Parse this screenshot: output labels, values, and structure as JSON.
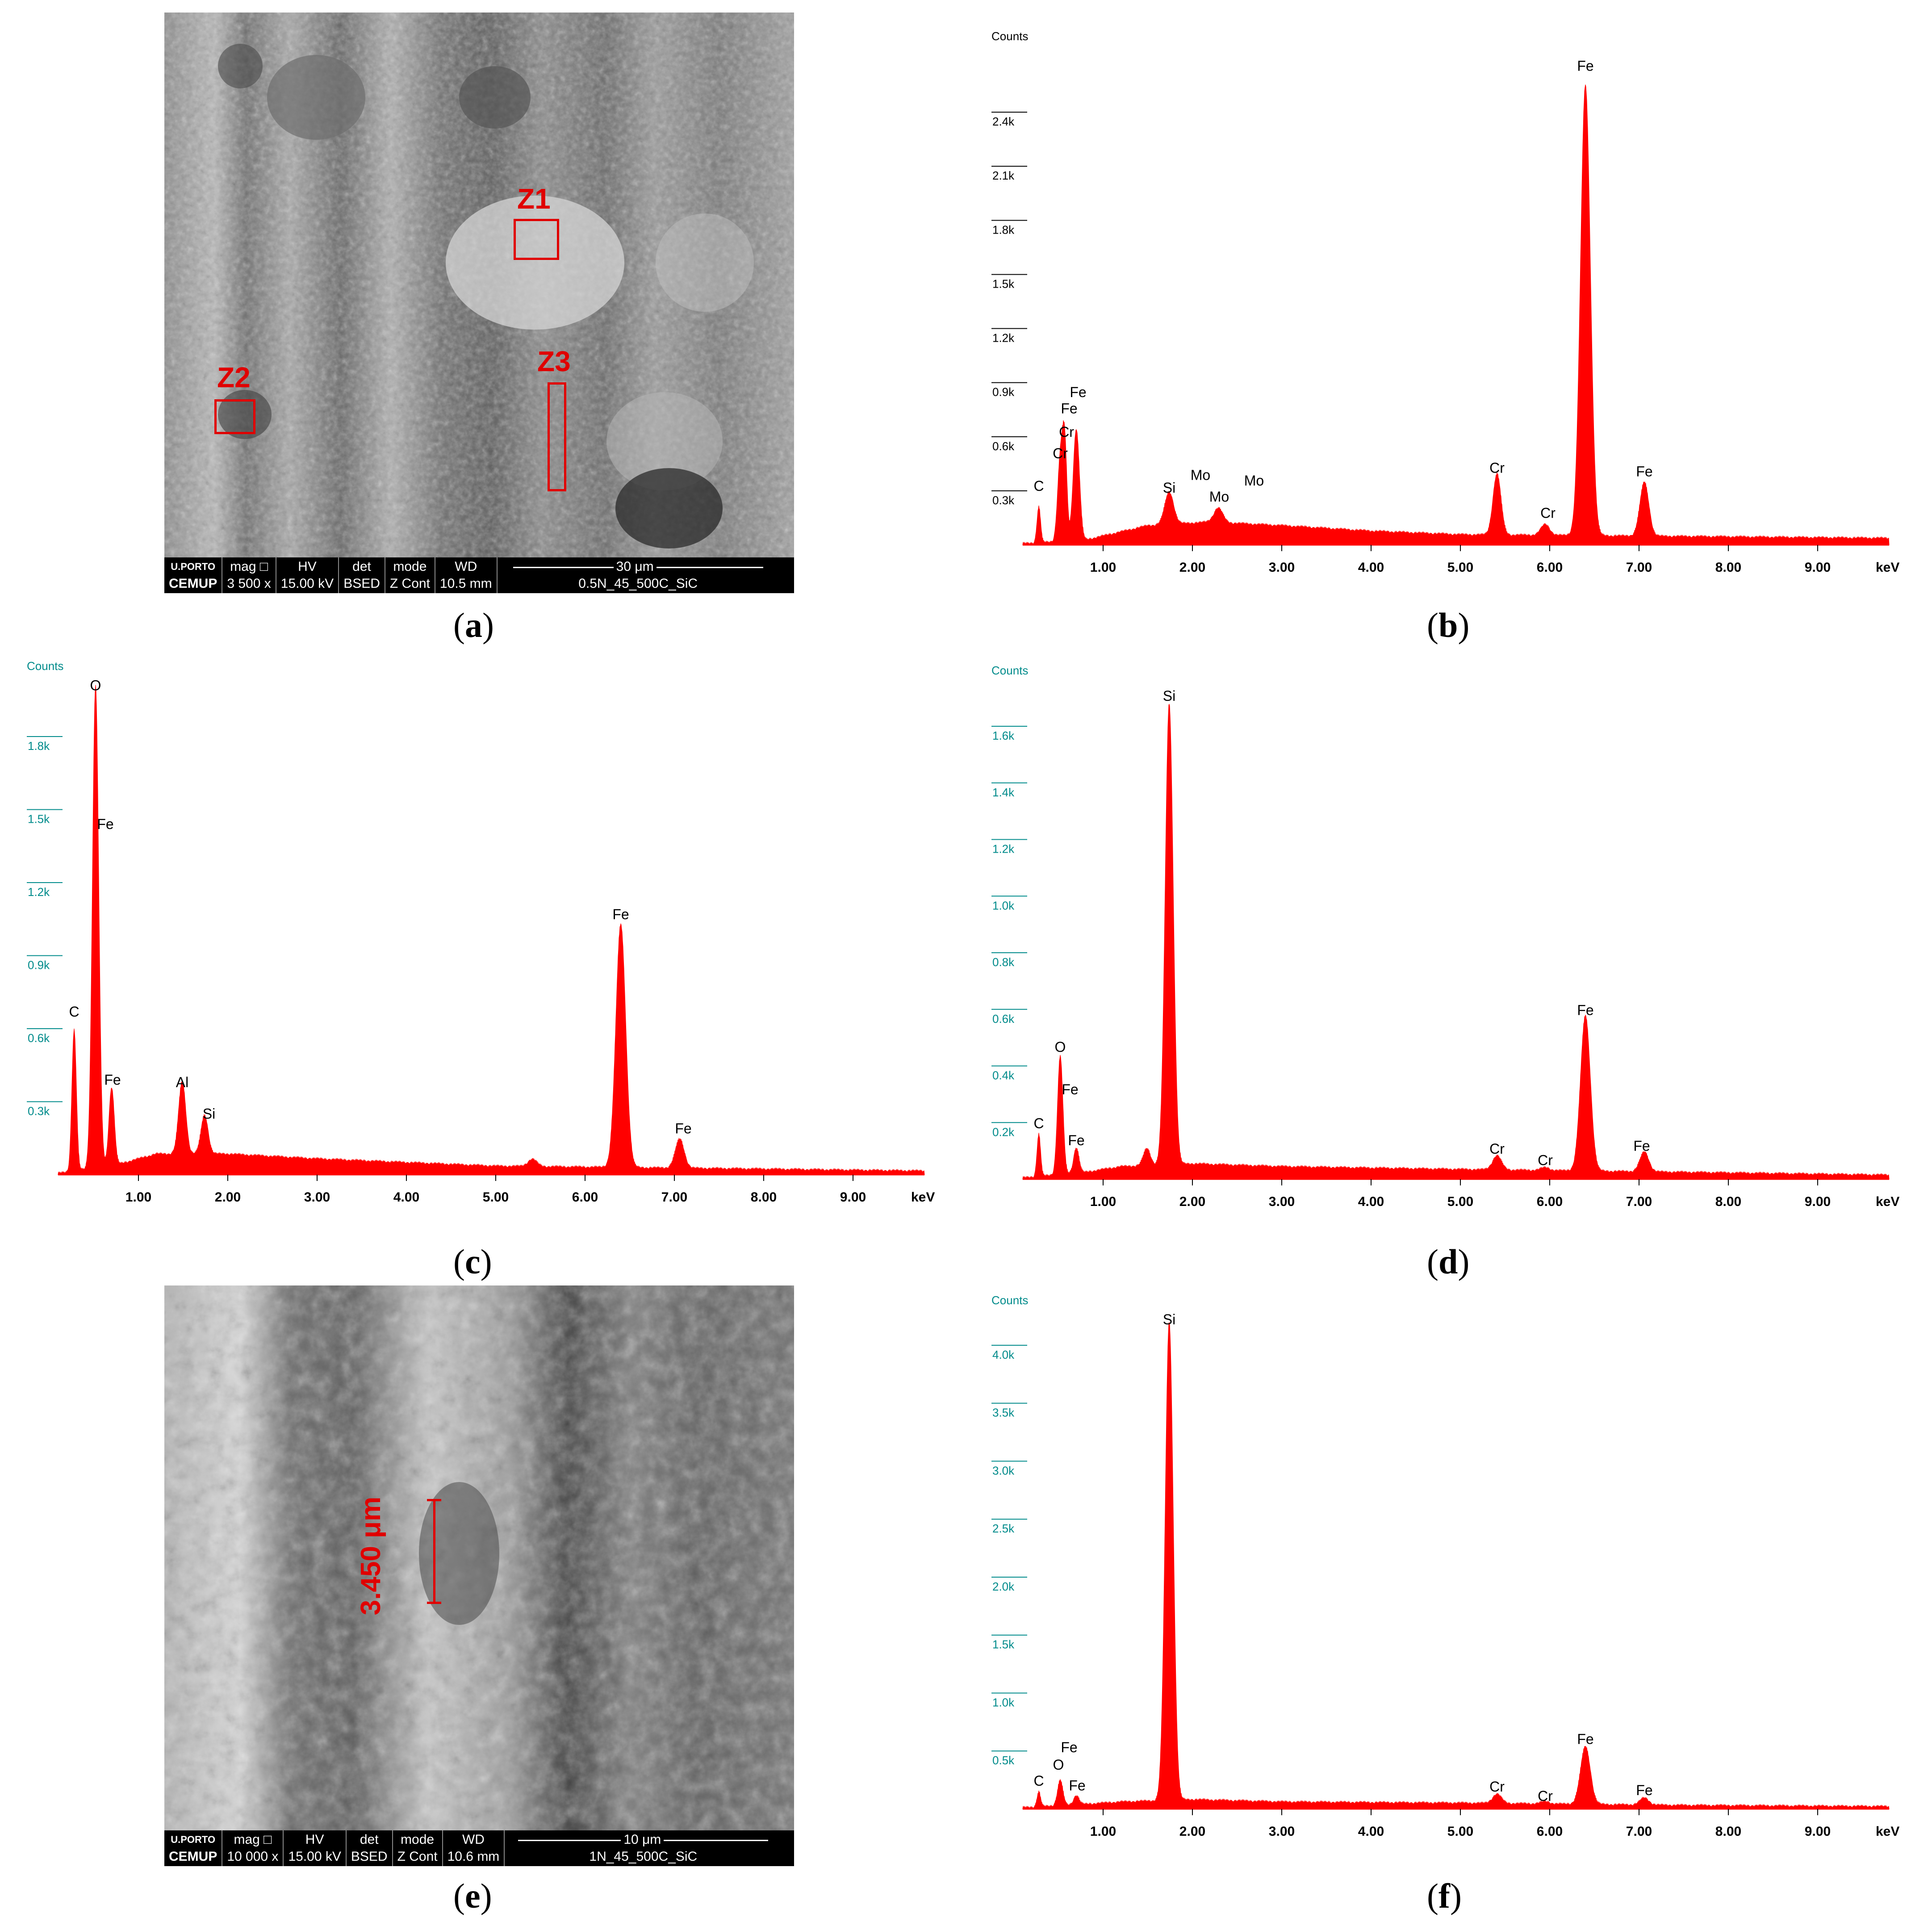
{
  "figure": {
    "captions": [
      "a",
      "b",
      "c",
      "d",
      "e",
      "f"
    ]
  },
  "sem_a": {
    "zones": [
      "Z1",
      "Z2",
      "Z3"
    ],
    "databar": {
      "logo_top": "U.PORTO",
      "logo_bottom": "CEMUP",
      "mag_label": "mag □",
      "mag_value": "3 500 x",
      "hv_label": "HV",
      "hv_value": "15.00 kV",
      "det_label": "det",
      "det_value": "BSED",
      "mode_label": "mode",
      "mode_value": "Z Cont",
      "wd_label": "WD",
      "wd_value": "10.5 mm",
      "scale": "30 μm",
      "sample": "0.5N_45_500C_SiC"
    }
  },
  "sem_e": {
    "measure": "3.450 μm",
    "databar": {
      "logo_top": "U.PORTO",
      "logo_bottom": "CEMUP",
      "mag_label": "mag □",
      "mag_value": "10 000 x",
      "hv_label": "HV",
      "hv_value": "15.00 kV",
      "det_label": "det",
      "det_value": "BSED",
      "mode_label": "mode",
      "mode_value": "Z Cont",
      "wd_label": "WD",
      "wd_value": "10.6 mm",
      "scale": "10 μm",
      "sample": "1N_45_500C_SiC"
    }
  },
  "colors": {
    "spectrum": "#ff0000",
    "zone": "#e00000",
    "tick_teal": "#008b8b"
  },
  "chart_data": [
    {
      "id": "b",
      "type": "area",
      "ylabel": "Counts",
      "xlabel": "keV",
      "xlim": [
        0.1,
        9.8
      ],
      "ylim": [
        0,
        2.7
      ],
      "xticks": [
        "1.00",
        "2.00",
        "3.00",
        "4.00",
        "5.00",
        "6.00",
        "7.00",
        "8.00",
        "9.00"
      ],
      "yticks": [
        "0.3k",
        "0.6k",
        "0.9k",
        "1.2k",
        "1.5k",
        "1.8k",
        "2.1k",
        "2.4k"
      ],
      "ytick_values": [
        0.3,
        0.6,
        0.9,
        1.2,
        1.5,
        1.8,
        2.1,
        2.4
      ],
      "ytick_color": "#000000",
      "peaks": [
        {
          "x": 0.28,
          "y": 0.2,
          "w": 0.02
        },
        {
          "x": 0.52,
          "y": 0.45,
          "w": 0.03
        },
        {
          "x": 0.57,
          "y": 0.52,
          "w": 0.025
        },
        {
          "x": 0.7,
          "y": 0.62,
          "w": 0.035
        },
        {
          "x": 1.74,
          "y": 0.18,
          "w": 0.05
        },
        {
          "x": 2.29,
          "y": 0.08,
          "w": 0.05
        },
        {
          "x": 5.41,
          "y": 0.34,
          "w": 0.045
        },
        {
          "x": 5.95,
          "y": 0.06,
          "w": 0.05
        },
        {
          "x": 6.4,
          "y": 2.5,
          "w": 0.055
        },
        {
          "x": 7.06,
          "y": 0.3,
          "w": 0.05
        }
      ],
      "background": [
        [
          0.8,
          0.02
        ],
        [
          1.5,
          0.1
        ],
        [
          2.2,
          0.12
        ],
        [
          3.0,
          0.1
        ],
        [
          4.0,
          0.07
        ],
        [
          5.0,
          0.05
        ],
        [
          7.5,
          0.04
        ],
        [
          9.8,
          0.03
        ]
      ],
      "labels": [
        {
          "text": "C",
          "x": 0.28,
          "y": 0.3
        },
        {
          "text": "Cr",
          "x": 0.52,
          "y": 0.48
        },
        {
          "text": "Cr",
          "x": 0.59,
          "y": 0.6
        },
        {
          "text": "Fe",
          "x": 0.62,
          "y": 0.73
        },
        {
          "text": "Fe",
          "x": 0.72,
          "y": 0.82
        },
        {
          "text": "Si",
          "x": 1.74,
          "y": 0.29
        },
        {
          "text": "Mo",
          "x": 2.09,
          "y": 0.36
        },
        {
          "text": "Mo",
          "x": 2.3,
          "y": 0.24
        },
        {
          "text": "Mo",
          "x": 2.69,
          "y": 0.33
        },
        {
          "text": "Cr",
          "x": 5.41,
          "y": 0.4
        },
        {
          "text": "Cr",
          "x": 5.98,
          "y": 0.15
        },
        {
          "text": "Fe",
          "x": 6.4,
          "y": 2.63
        },
        {
          "text": "Fe",
          "x": 7.06,
          "y": 0.38
        }
      ]
    },
    {
      "id": "c",
      "type": "area",
      "ylabel": "Counts",
      "xlabel": "keV",
      "xlim": [
        0.1,
        9.8
      ],
      "ylim": [
        0,
        2.0
      ],
      "xticks": [
        "1.00",
        "2.00",
        "3.00",
        "4.00",
        "5.00",
        "6.00",
        "7.00",
        "8.00",
        "9.00"
      ],
      "yticks": [
        "0.3k",
        "0.6k",
        "0.9k",
        "1.2k",
        "1.5k",
        "1.8k"
      ],
      "ytick_values": [
        0.3,
        0.6,
        0.9,
        1.2,
        1.5,
        1.8
      ],
      "ytick_color": "#008b8b",
      "peaks": [
        {
          "x": 0.28,
          "y": 0.58,
          "w": 0.025
        },
        {
          "x": 0.52,
          "y": 1.98,
          "w": 0.035
        },
        {
          "x": 0.7,
          "y": 0.32,
          "w": 0.03
        },
        {
          "x": 1.49,
          "y": 0.3,
          "w": 0.04
        },
        {
          "x": 1.74,
          "y": 0.16,
          "w": 0.04
        },
        {
          "x": 5.41,
          "y": 0.03,
          "w": 0.05
        },
        {
          "x": 6.4,
          "y": 1.0,
          "w": 0.055
        },
        {
          "x": 7.06,
          "y": 0.12,
          "w": 0.05
        }
      ],
      "background": [
        [
          0.8,
          0.04
        ],
        [
          1.2,
          0.08
        ],
        [
          2.0,
          0.08
        ],
        [
          3.0,
          0.06
        ],
        [
          5.0,
          0.03
        ],
        [
          7.5,
          0.02
        ],
        [
          9.8,
          0.01
        ]
      ],
      "labels": [
        {
          "text": "O",
          "x": 0.52,
          "y": 1.99
        },
        {
          "text": "C",
          "x": 0.28,
          "y": 0.65
        },
        {
          "text": "Fe",
          "x": 0.63,
          "y": 1.42
        },
        {
          "text": "Fe",
          "x": 0.71,
          "y": 0.37
        },
        {
          "text": "Al",
          "x": 1.49,
          "y": 0.36
        },
        {
          "text": "Si",
          "x": 1.79,
          "y": 0.23
        },
        {
          "text": "Fe",
          "x": 6.4,
          "y": 1.05
        },
        {
          "text": "Fe",
          "x": 7.1,
          "y": 0.17
        }
      ]
    },
    {
      "id": "d",
      "type": "area",
      "ylabel": "Counts",
      "xlabel": "keV",
      "xlim": [
        0.1,
        9.8
      ],
      "ylim": [
        0,
        1.72
      ],
      "xticks": [
        "1.00",
        "2.00",
        "3.00",
        "4.00",
        "5.00",
        "6.00",
        "7.00",
        "8.00",
        "9.00"
      ],
      "yticks": [
        "0.2k",
        "0.4k",
        "0.6k",
        "0.8k",
        "1.0k",
        "1.2k",
        "1.4k",
        "1.6k"
      ],
      "ytick_values": [
        0.2,
        0.4,
        0.6,
        0.8,
        1.0,
        1.2,
        1.4,
        1.6
      ],
      "ytick_color": "#008b8b",
      "peaks": [
        {
          "x": 0.28,
          "y": 0.15,
          "w": 0.02
        },
        {
          "x": 0.52,
          "y": 0.42,
          "w": 0.03
        },
        {
          "x": 0.7,
          "y": 0.09,
          "w": 0.03
        },
        {
          "x": 1.49,
          "y": 0.06,
          "w": 0.04
        },
        {
          "x": 1.74,
          "y": 1.63,
          "w": 0.045
        },
        {
          "x": 5.41,
          "y": 0.05,
          "w": 0.05
        },
        {
          "x": 5.95,
          "y": 0.01,
          "w": 0.05
        },
        {
          "x": 6.4,
          "y": 0.55,
          "w": 0.055
        },
        {
          "x": 7.06,
          "y": 0.07,
          "w": 0.05
        }
      ],
      "background": [
        [
          0.8,
          0.02
        ],
        [
          1.2,
          0.04
        ],
        [
          2.0,
          0.05
        ],
        [
          3.0,
          0.04
        ],
        [
          5.0,
          0.03
        ],
        [
          7.5,
          0.02
        ],
        [
          9.8,
          0.01
        ]
      ],
      "labels": [
        {
          "text": "Si",
          "x": 1.74,
          "y": 1.69
        },
        {
          "text": "O",
          "x": 0.52,
          "y": 0.45
        },
        {
          "text": "Fe",
          "x": 0.63,
          "y": 0.3
        },
        {
          "text": "C",
          "x": 0.28,
          "y": 0.18
        },
        {
          "text": "Fe",
          "x": 0.7,
          "y": 0.12
        },
        {
          "text": "Cr",
          "x": 5.41,
          "y": 0.09
        },
        {
          "text": "Cr",
          "x": 5.95,
          "y": 0.05
        },
        {
          "text": "Fe",
          "x": 6.4,
          "y": 0.58
        },
        {
          "text": "Fe",
          "x": 7.03,
          "y": 0.1
        }
      ]
    },
    {
      "id": "f",
      "type": "area",
      "ylabel": "Counts",
      "xlabel": "keV",
      "xlim": [
        0.1,
        9.8
      ],
      "ylim": [
        0,
        4.2
      ],
      "xticks": [
        "1.00",
        "2.00",
        "3.00",
        "4.00",
        "5.00",
        "6.00",
        "7.00",
        "8.00",
        "9.00"
      ],
      "yticks": [
        "0.5k",
        "1.0k",
        "1.5k",
        "2.0k",
        "2.5k",
        "3.0k",
        "3.5k",
        "4.0k"
      ],
      "ytick_values": [
        0.5,
        1.0,
        1.5,
        2.0,
        2.5,
        3.0,
        3.5,
        4.0
      ],
      "ytick_color": "#008b8b",
      "peaks": [
        {
          "x": 0.28,
          "y": 0.13,
          "w": 0.02
        },
        {
          "x": 0.52,
          "y": 0.22,
          "w": 0.03
        },
        {
          "x": 0.7,
          "y": 0.08,
          "w": 0.03
        },
        {
          "x": 1.74,
          "y": 4.13,
          "w": 0.045
        },
        {
          "x": 5.41,
          "y": 0.08,
          "w": 0.05
        },
        {
          "x": 5.95,
          "y": 0.02,
          "w": 0.05
        },
        {
          "x": 6.4,
          "y": 0.5,
          "w": 0.055
        },
        {
          "x": 7.06,
          "y": 0.06,
          "w": 0.05
        }
      ],
      "background": [
        [
          0.8,
          0.03
        ],
        [
          1.2,
          0.05
        ],
        [
          2.0,
          0.07
        ],
        [
          3.0,
          0.05
        ],
        [
          5.0,
          0.04
        ],
        [
          7.5,
          0.02
        ],
        [
          9.8,
          0.01
        ]
      ],
      "labels": [
        {
          "text": "Si",
          "x": 1.74,
          "y": 4.18
        },
        {
          "text": "Fe",
          "x": 0.62,
          "y": 0.49
        },
        {
          "text": "O",
          "x": 0.5,
          "y": 0.34
        },
        {
          "text": "C",
          "x": 0.28,
          "y": 0.2
        },
        {
          "text": "Fe",
          "x": 0.71,
          "y": 0.16
        },
        {
          "text": "Cr",
          "x": 5.41,
          "y": 0.15
        },
        {
          "text": "Cr",
          "x": 5.95,
          "y": 0.07
        },
        {
          "text": "Fe",
          "x": 6.4,
          "y": 0.56
        },
        {
          "text": "Fe",
          "x": 7.06,
          "y": 0.12
        }
      ]
    }
  ]
}
